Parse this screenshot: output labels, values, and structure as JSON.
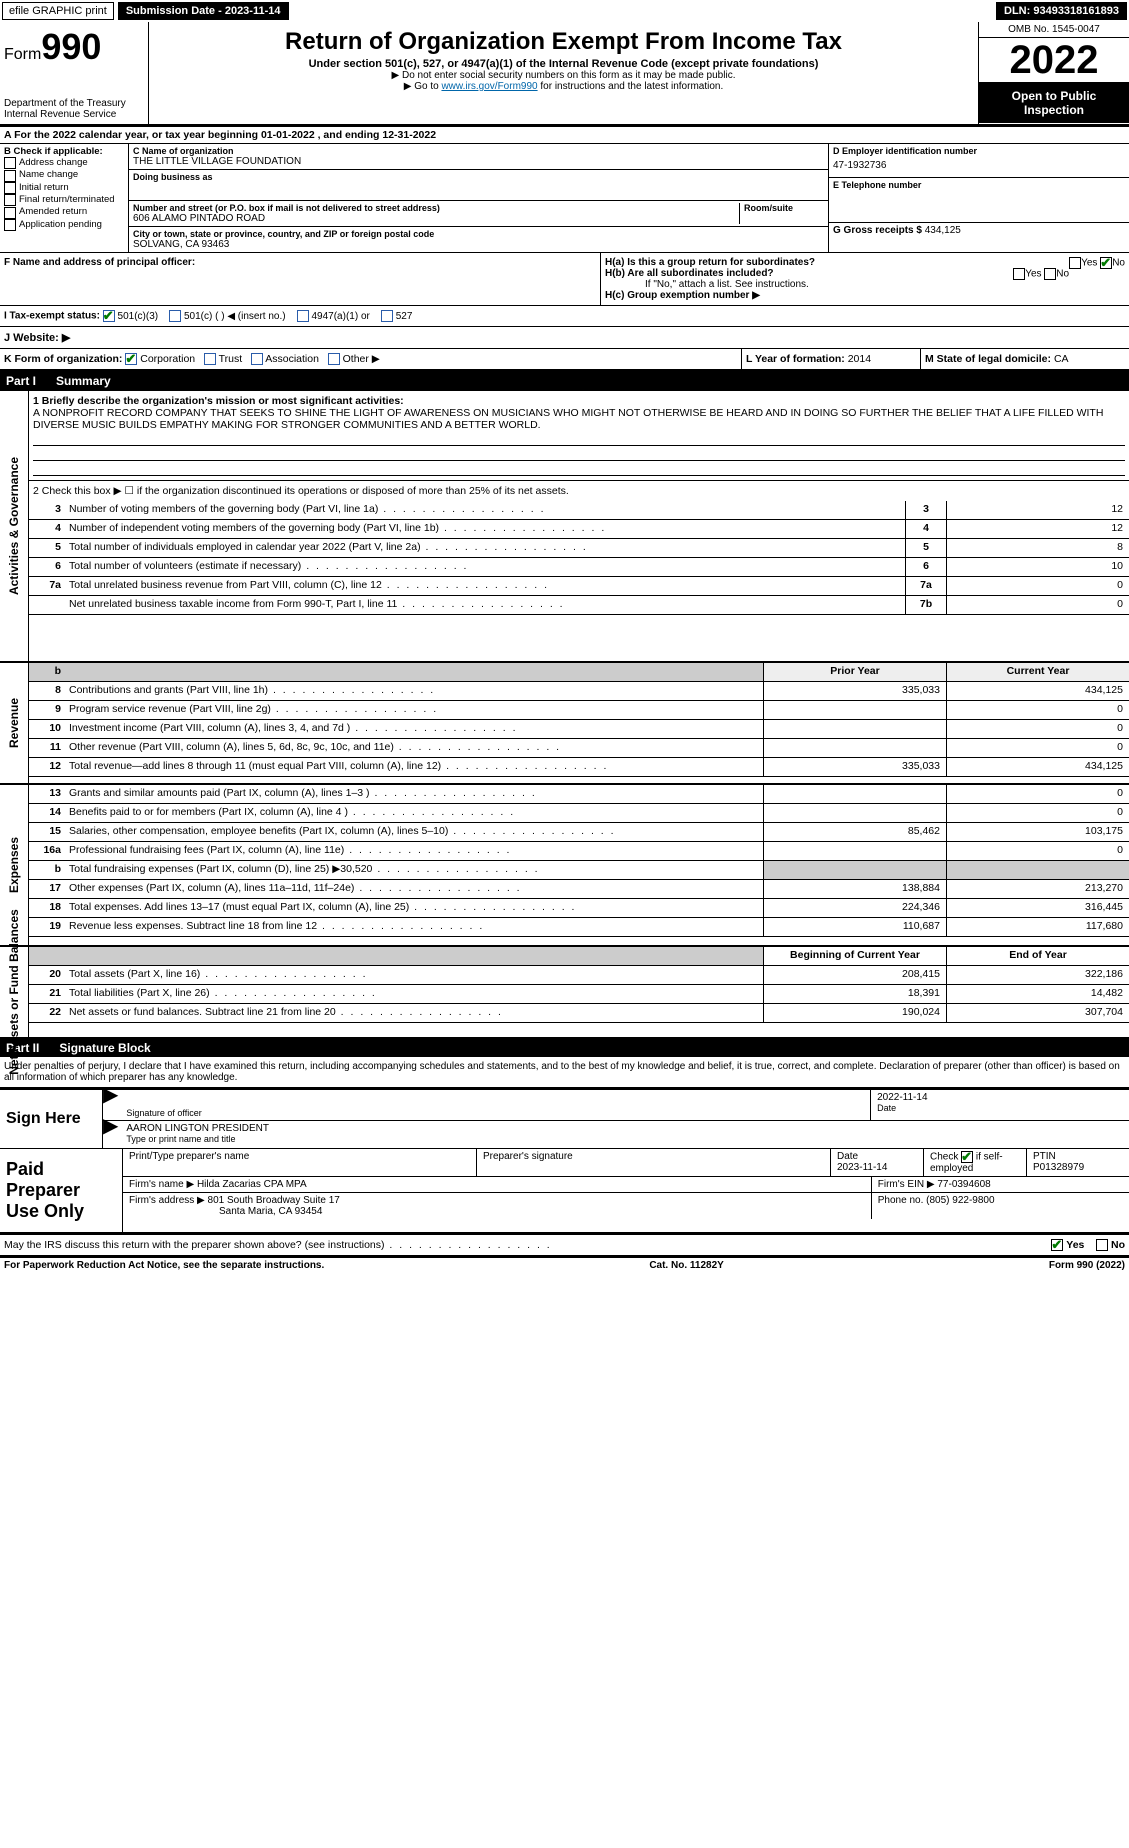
{
  "topbar": {
    "efile": "efile GRAPHIC print",
    "submission": "Submission Date - 2023-11-14",
    "dln": "DLN: 93493318161893"
  },
  "header": {
    "form_prefix": "Form",
    "form_number": "990",
    "title": "Return of Organization Exempt From Income Tax",
    "sub1": "Under section 501(c), 527, or 4947(a)(1) of the Internal Revenue Code (except private foundations)",
    "sub2": "▶ Do not enter social security numbers on this form as it may be made public.",
    "sub3_pre": "▶ Go to ",
    "sub3_link": "www.irs.gov/Form990",
    "sub3_post": " for instructions and the latest information.",
    "dept": "Department of the Treasury",
    "irs": "Internal Revenue Service",
    "omb": "OMB No. 1545-0047",
    "year": "2022",
    "open": "Open to Public Inspection"
  },
  "lineA": "For the 2022 calendar year, or tax year beginning 01-01-2022    , and ending 12-31-2022",
  "B": {
    "title": "B Check if applicable:",
    "items": [
      "Address change",
      "Name change",
      "Initial return",
      "Final return/terminated",
      "Amended return",
      "Application pending"
    ]
  },
  "C": {
    "label_name": "C Name of organization",
    "name": "THE LITTLE VILLAGE FOUNDATION",
    "dba_label": "Doing business as",
    "addr_label": "Number and street (or P.O. box if mail is not delivered to street address)",
    "room_label": "Room/suite",
    "addr": "606 ALAMO PINTADO ROAD",
    "city_label": "City or town, state or province, country, and ZIP or foreign postal code",
    "city": "SOLVANG, CA  93463"
  },
  "D": {
    "label": "D Employer identification number",
    "value": "47-1932736"
  },
  "E": {
    "label": "E Telephone number",
    "value": ""
  },
  "G": {
    "label": "G Gross receipts $",
    "value": "434,125"
  },
  "F": {
    "label": "F  Name and address of principal officer:"
  },
  "H": {
    "a": "H(a)  Is this a group return for subordinates?",
    "a_yes": "Yes",
    "a_no": "No",
    "b": "H(b)  Are all subordinates included?",
    "b_note": "If \"No,\" attach a list. See instructions.",
    "c": "H(c)  Group exemption number ▶"
  },
  "I": {
    "label": "I   Tax-exempt status:",
    "opts": [
      "501(c)(3)",
      "501(c) (   ) ◀ (insert no.)",
      "4947(a)(1) or",
      "527"
    ]
  },
  "J": {
    "label": "J   Website: ▶"
  },
  "K": {
    "label": "K Form of organization:",
    "opts": [
      "Corporation",
      "Trust",
      "Association",
      "Other ▶"
    ]
  },
  "L": {
    "label": "L Year of formation:",
    "value": "2014"
  },
  "M": {
    "label": "M State of legal domicile:",
    "value": "CA"
  },
  "partI": {
    "label": "Part I",
    "title": "Summary"
  },
  "summary": {
    "l1_label": "1  Briefly describe the organization's mission or most significant activities:",
    "l1_text": "A NONPROFIT RECORD COMPANY THAT SEEKS TO SHINE THE LIGHT OF AWARENESS ON MUSICIANS WHO MIGHT NOT OTHERWISE BE HEARD AND IN DOING SO FURTHER THE BELIEF THAT A LIFE FILLED WITH DIVERSE MUSIC BUILDS EMPATHY MAKING FOR STRONGER COMMUNITIES AND A BETTER WORLD.",
    "l2": "2   Check this box ▶ ☐  if the organization discontinued its operations or disposed of more than 25% of its net assets.",
    "rows_nb": [
      {
        "n": "3",
        "d": "Number of voting members of the governing body (Part VI, line 1a)",
        "box": "3",
        "v": "12"
      },
      {
        "n": "4",
        "d": "Number of independent voting members of the governing body (Part VI, line 1b)",
        "box": "4",
        "v": "12"
      },
      {
        "n": "5",
        "d": "Total number of individuals employed in calendar year 2022 (Part V, line 2a)",
        "box": "5",
        "v": "8"
      },
      {
        "n": "6",
        "d": "Total number of volunteers (estimate if necessary)",
        "box": "6",
        "v": "10"
      },
      {
        "n": "7a",
        "d": "Total unrelated business revenue from Part VIII, column (C), line 12",
        "box": "7a",
        "v": "0"
      },
      {
        "n": "",
        "d": "Net unrelated business taxable income from Form 990-T, Part I, line 11",
        "box": "7b",
        "v": "0"
      }
    ],
    "col_prior": "Prior Year",
    "col_current": "Current Year",
    "revenue": [
      {
        "n": "8",
        "d": "Contributions and grants (Part VIII, line 1h)",
        "p": "335,033",
        "c": "434,125"
      },
      {
        "n": "9",
        "d": "Program service revenue (Part VIII, line 2g)",
        "p": "",
        "c": "0"
      },
      {
        "n": "10",
        "d": "Investment income (Part VIII, column (A), lines 3, 4, and 7d )",
        "p": "",
        "c": "0"
      },
      {
        "n": "11",
        "d": "Other revenue (Part VIII, column (A), lines 5, 6d, 8c, 9c, 10c, and 11e)",
        "p": "",
        "c": "0"
      },
      {
        "n": "12",
        "d": "Total revenue—add lines 8 through 11 (must equal Part VIII, column (A), line 12)",
        "p": "335,033",
        "c": "434,125"
      }
    ],
    "expenses": [
      {
        "n": "13",
        "d": "Grants and similar amounts paid (Part IX, column (A), lines 1–3 )",
        "p": "",
        "c": "0"
      },
      {
        "n": "14",
        "d": "Benefits paid to or for members (Part IX, column (A), line 4 )",
        "p": "",
        "c": "0"
      },
      {
        "n": "15",
        "d": "Salaries, other compensation, employee benefits (Part IX, column (A), lines 5–10)",
        "p": "85,462",
        "c": "103,175"
      },
      {
        "n": "16a",
        "d": "Professional fundraising fees (Part IX, column (A), line 11e)",
        "p": "",
        "c": "0"
      },
      {
        "n": "b",
        "d": "Total fundraising expenses (Part IX, column (D), line 25) ▶30,520",
        "p": "SHADE",
        "c": "SHADE"
      },
      {
        "n": "17",
        "d": "Other expenses (Part IX, column (A), lines 11a–11d, 11f–24e)",
        "p": "138,884",
        "c": "213,270"
      },
      {
        "n": "18",
        "d": "Total expenses. Add lines 13–17 (must equal Part IX, column (A), line 25)",
        "p": "224,346",
        "c": "316,445"
      },
      {
        "n": "19",
        "d": "Revenue less expenses. Subtract line 18 from line 12",
        "p": "110,687",
        "c": "117,680"
      }
    ],
    "col_begin": "Beginning of Current Year",
    "col_end": "End of Year",
    "netassets": [
      {
        "n": "20",
        "d": "Total assets (Part X, line 16)",
        "p": "208,415",
        "c": "322,186"
      },
      {
        "n": "21",
        "d": "Total liabilities (Part X, line 26)",
        "p": "18,391",
        "c": "14,482"
      },
      {
        "n": "22",
        "d": "Net assets or fund balances. Subtract line 21 from line 20",
        "p": "190,024",
        "c": "307,704"
      }
    ],
    "side_gov": "Activities & Governance",
    "side_rev": "Revenue",
    "side_exp": "Expenses",
    "side_net": "Net Assets or Fund Balances"
  },
  "partII": {
    "label": "Part II",
    "title": "Signature Block"
  },
  "sig": {
    "penalty": "Under penalties of perjury, I declare that I have examined this return, including accompanying schedules and statements, and to the best of my knowledge and belief, it is true, correct, and complete. Declaration of preparer (other than officer) is based on all information of which preparer has any knowledge.",
    "sign_here": "Sign Here",
    "sig_officer": "Signature of officer",
    "date": "Date",
    "date_val": "2022-11-14",
    "name": "AARON LINGTON  PRESIDENT",
    "name_label": "Type or print name and title"
  },
  "paid": {
    "title": "Paid Preparer Use Only",
    "h1": "Print/Type preparer's name",
    "h2": "Preparer's signature",
    "h3": "Date",
    "h3v": "2023-11-14",
    "h4": "Check ☑ if self-employed",
    "h5": "PTIN",
    "h5v": "P01328979",
    "firm_label": "Firm's name    ▶",
    "firm": "Hilda Zacarias CPA MPA",
    "ein_label": "Firm's EIN ▶",
    "ein": "77-0394608",
    "addr_label": "Firm's address ▶",
    "addr1": "801 South Broadway Suite 17",
    "addr2": "Santa Maria, CA  93454",
    "phone_label": "Phone no.",
    "phone": "(805) 922-9800"
  },
  "may": {
    "q": "May the IRS discuss this return with the preparer shown above? (see instructions)",
    "yes": "Yes",
    "no": "No"
  },
  "footer": {
    "left": "For Paperwork Reduction Act Notice, see the separate instructions.",
    "mid": "Cat. No. 11282Y",
    "right": "Form 990 (2022)"
  }
}
